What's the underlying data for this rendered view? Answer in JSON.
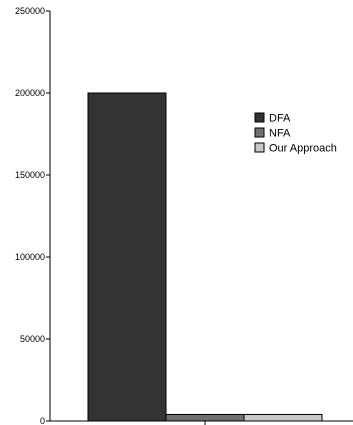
{
  "chart_data": {
    "type": "bar",
    "categories": [
      ""
    ],
    "series": [
      {
        "name": "DFA",
        "values": [
          200000
        ],
        "color": "#333333"
      },
      {
        "name": "NFA",
        "values": [
          4000
        ],
        "color": "#707070"
      },
      {
        "name": "Our Approach",
        "values": [
          4000
        ],
        "color": "#c8c8c8"
      }
    ],
    "ylim": [
      0,
      250000
    ],
    "yticks": [
      0,
      50000,
      100000,
      150000,
      200000,
      250000
    ],
    "ytick_labels": [
      "0",
      "50000",
      "100000",
      "150000",
      "200000",
      "250000"
    ],
    "grid": false,
    "legend_position": "right"
  }
}
